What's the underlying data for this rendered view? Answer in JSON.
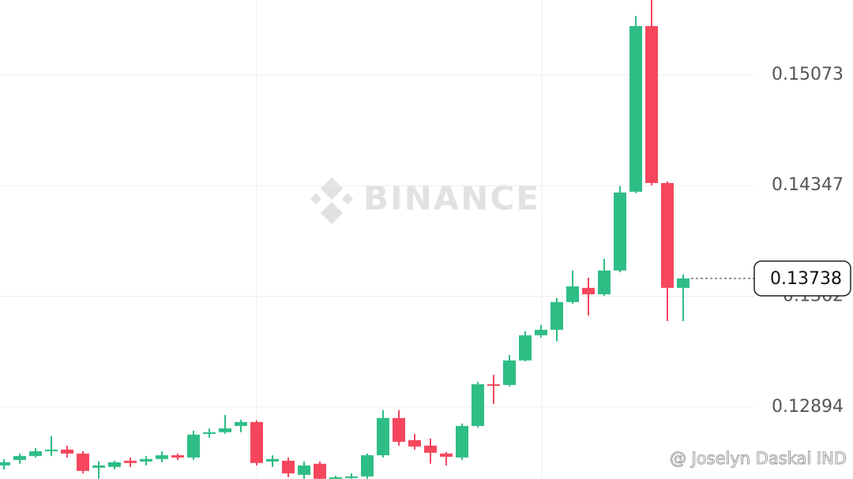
{
  "chart_data": {
    "type": "candlestick",
    "open": [
      0.12511,
      0.12547,
      0.12573,
      0.12604,
      0.12615,
      0.12589,
      0.12496,
      0.12501,
      0.12542,
      0.12537,
      0.12553,
      0.12578,
      0.12563,
      0.12718,
      0.12729,
      0.1277,
      0.12796,
      0.12537,
      0.12542,
      0.12449,
      0.12522,
      0.12423,
      0.12428,
      0.12439,
      0.12578,
      0.12822,
      0.12677,
      0.12641,
      0.12589,
      0.12563,
      0.1277,
      0.13044,
      0.13039,
      0.132,
      0.13365,
      0.13401,
      0.13583,
      0.13676,
      0.13634,
      0.1379,
      0.14307,
      0.15394,
      0.14364,
      0.13676
    ],
    "high": [
      0.12553,
      0.12589,
      0.12625,
      0.12703,
      0.12641,
      0.12604,
      0.12537,
      0.12542,
      0.12563,
      0.12573,
      0.12604,
      0.12589,
      0.12739,
      0.12754,
      0.12842,
      0.12811,
      0.12806,
      0.12578,
      0.12563,
      0.12537,
      0.12537,
      0.12444,
      0.12459,
      0.12589,
      0.12874,
      0.12874,
      0.12718,
      0.12687,
      0.12599,
      0.12786,
      0.1306,
      0.13106,
      0.13236,
      0.13391,
      0.13433,
      0.13609,
      0.1379,
      0.13743,
      0.13867,
      0.14344,
      0.15461,
      0.15565,
      0.14375,
      0.13764
    ],
    "low": [
      0.12485,
      0.12522,
      0.12563,
      0.12573,
      0.12563,
      0.12459,
      0.12423,
      0.12485,
      0.12501,
      0.12511,
      0.12532,
      0.12547,
      0.12547,
      0.12692,
      0.12718,
      0.12729,
      0.12511,
      0.12501,
      0.12434,
      0.12423,
      0.12423,
      0.12423,
      0.12423,
      0.12423,
      0.12563,
      0.12641,
      0.12615,
      0.12522,
      0.12511,
      0.12547,
      0.1276,
      0.12915,
      0.13029,
      0.13194,
      0.1335,
      0.13324,
      0.13572,
      0.13495,
      0.13624,
      0.13779,
      0.14297,
      0.14349,
      0.13458,
      0.13458
    ],
    "close": [
      0.12532,
      0.12573,
      0.12604,
      0.12615,
      0.12589,
      0.12475,
      0.12511,
      0.12532,
      0.12527,
      0.12553,
      0.12578,
      0.12563,
      0.12713,
      0.12729,
      0.12754,
      0.12796,
      0.12527,
      0.12553,
      0.12459,
      0.12511,
      0.12423,
      0.12434,
      0.12439,
      0.12578,
      0.12822,
      0.12666,
      0.12635,
      0.12594,
      0.12568,
      0.1277,
      0.13044,
      0.13034,
      0.132,
      0.13365,
      0.13401,
      0.13583,
      0.13686,
      0.13634,
      0.1379,
      0.14302,
      0.15394,
      0.14364,
      0.13676,
      0.13738
    ],
    "ylim": [
      0.12422,
      0.15565
    ],
    "yticks": [
      0.12894,
      0.1362,
      0.14347,
      0.15073
    ],
    "ytick_labels_note_free": null,
    "grid": true,
    "up_color": "#2ebd85",
    "down_color": "#f6465d",
    "last_price": {
      "value": 0.13738,
      "label": "0.13738"
    },
    "watermark": "BINANCE",
    "attribution": "@ Joselyn Daskal IND"
  }
}
